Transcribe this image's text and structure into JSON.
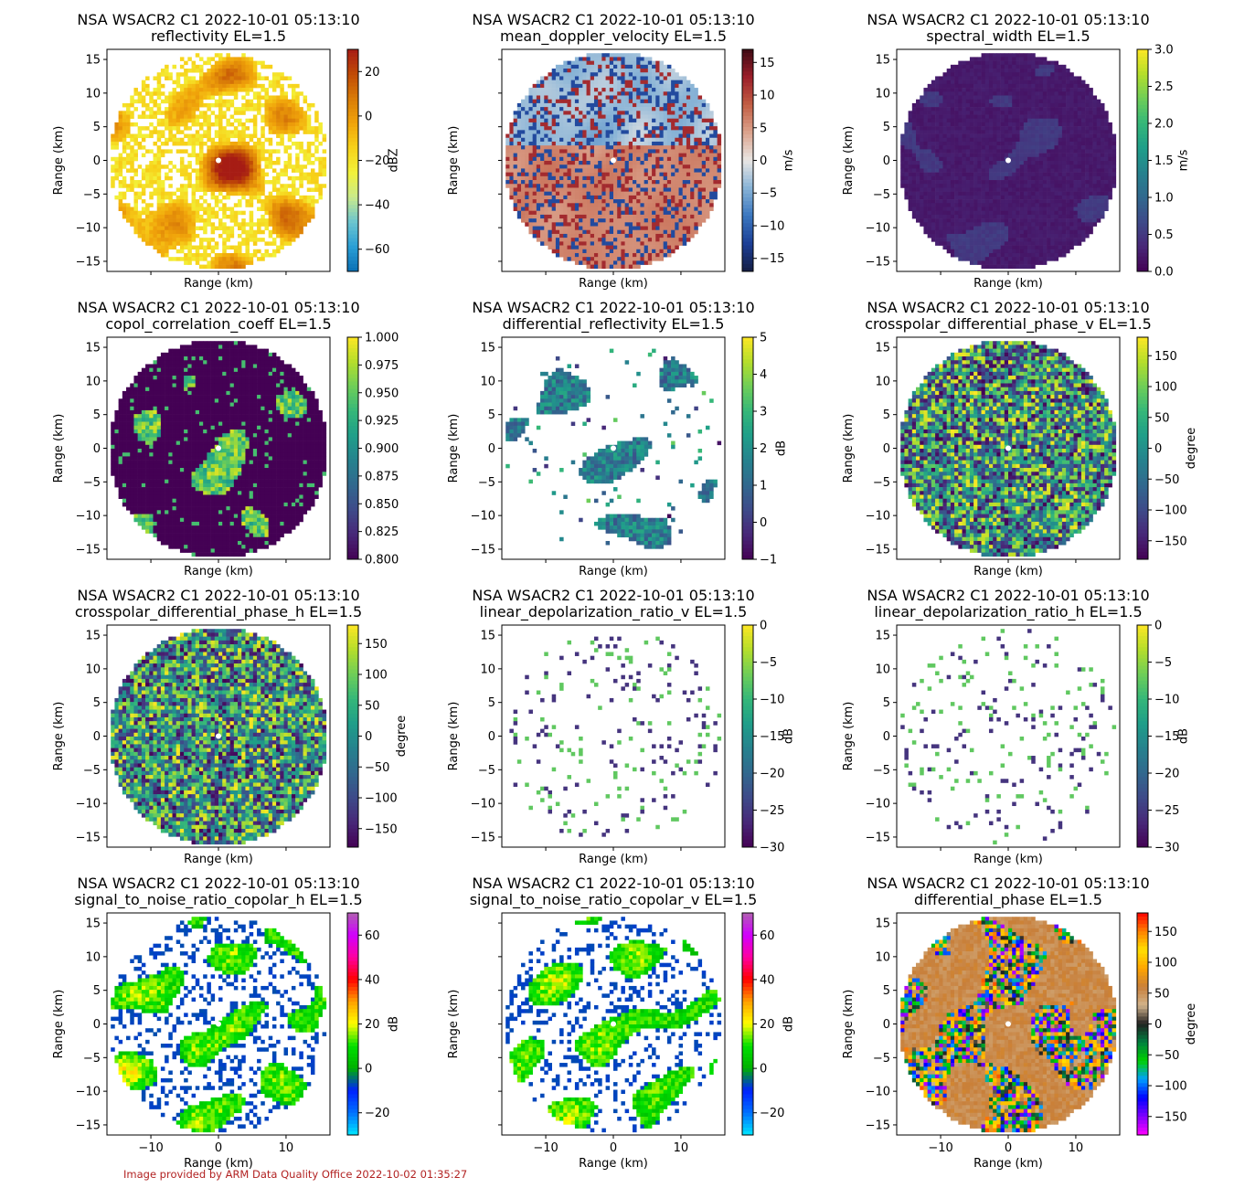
{
  "figure": {
    "credit": "Image provided by ARM Data Quality Office 2022-10-02 01:35:27",
    "colors": {
      "background": "#ffffff",
      "credit": "#b22222",
      "axes": "#000000"
    }
  },
  "chart_data": [
    {
      "type": "heatmap",
      "title": "NSA WSACR2 C1 2022-10-01 05:13:10",
      "subtitle": "reflectivity  EL=1.5",
      "xlabel": "Range (km)",
      "ylabel": "Range (km)",
      "xlim": [
        -16.5,
        16.5
      ],
      "ylim": [
        -16.5,
        16.5
      ],
      "xticks": [
        -10,
        0,
        10
      ],
      "yticks": [
        15,
        10,
        5,
        0,
        -5,
        -10,
        -15
      ],
      "show_xticklabels": false,
      "colorbar": {
        "label": "dBZ",
        "cmap": "homeyer",
        "range": [
          -70,
          30
        ],
        "ticks": [
          20,
          0,
          -20,
          -40,
          -60
        ]
      },
      "field": {
        "pattern": "cloud",
        "density": 0.8,
        "seed": 11
      }
    },
    {
      "type": "heatmap",
      "title": "NSA WSACR2 C1 2022-10-01 05:13:10",
      "subtitle": "mean_doppler_velocity  EL=1.5",
      "xlabel": "Range (km)",
      "ylabel": "Range (km)",
      "xlim": [
        -16.5,
        16.5
      ],
      "ylim": [
        -16.5,
        16.5
      ],
      "xticks": [
        -10,
        0,
        10
      ],
      "yticks": [
        15,
        10,
        5,
        0,
        -5,
        -10,
        -15
      ],
      "show_xticklabels": false,
      "show_yticklabels": false,
      "colorbar": {
        "label": "m/s",
        "cmap": "balance",
        "range": [
          -17,
          17
        ],
        "ticks": [
          15,
          10,
          5,
          0,
          -5,
          -10,
          -15
        ]
      },
      "field": {
        "pattern": "velocity",
        "density": 0.98,
        "seed": 23
      }
    },
    {
      "type": "heatmap",
      "title": "NSA WSACR2 C1 2022-10-01 05:13:10",
      "subtitle": "spectral_width  EL=1.5",
      "xlabel": "Range (km)",
      "ylabel": "Range (km)",
      "xlim": [
        -16.5,
        16.5
      ],
      "ylim": [
        -16.5,
        16.5
      ],
      "xticks": [
        -10,
        0,
        10
      ],
      "yticks": [
        15,
        10,
        5,
        0,
        -5,
        -10,
        -15
      ],
      "show_xticklabels": false,
      "colorbar": {
        "label": "m/s",
        "cmap": "viridis",
        "range": [
          0,
          3
        ],
        "ticks": [
          3.0,
          2.5,
          2.0,
          1.5,
          1.0,
          0.5,
          0.0
        ]
      },
      "field": {
        "pattern": "low",
        "density": 1.0,
        "seed": 37
      }
    },
    {
      "type": "heatmap",
      "title": "NSA WSACR2 C1 2022-10-01 05:13:10",
      "subtitle": "copol_correlation_coeff  EL=1.5",
      "xlabel": "Range (km)",
      "ylabel": "Range (km)",
      "xlim": [
        -16.5,
        16.5
      ],
      "ylim": [
        -16.5,
        16.5
      ],
      "xticks": [
        -10,
        0,
        10
      ],
      "yticks": [
        15,
        10,
        5,
        0,
        -5,
        -10,
        -15
      ],
      "show_xticklabels": false,
      "colorbar": {
        "label": "",
        "cmap": "viridis",
        "range": [
          0.8,
          1.0
        ],
        "ticks": [
          1.0,
          0.975,
          0.95,
          0.925,
          0.9,
          0.875,
          0.85,
          0.825,
          0.8
        ]
      },
      "field": {
        "pattern": "rho",
        "density": 1.0,
        "seed": 41
      }
    },
    {
      "type": "heatmap",
      "title": "NSA WSACR2 C1 2022-10-01 05:13:10",
      "subtitle": "differential_reflectivity  EL=1.5",
      "xlabel": "Range (km)",
      "ylabel": "Range (km)",
      "xlim": [
        -16.5,
        16.5
      ],
      "ylim": [
        -16.5,
        16.5
      ],
      "xticks": [
        -10,
        0,
        10
      ],
      "yticks": [
        15,
        10,
        5,
        0,
        -5,
        -10,
        -15
      ],
      "show_xticklabels": false,
      "colorbar": {
        "label": "dB",
        "cmap": "viridis",
        "range": [
          -1,
          5
        ],
        "ticks": [
          5,
          4,
          3,
          2,
          1,
          0,
          -1
        ]
      },
      "field": {
        "pattern": "sparse_cloud",
        "density": 0.35,
        "seed": 53
      }
    },
    {
      "type": "heatmap",
      "title": "NSA WSACR2 C1 2022-10-01 05:13:10",
      "subtitle": "crosspolar_differential_phase_v  EL=1.5",
      "xlabel": "Range (km)",
      "ylabel": "Range (km)",
      "xlim": [
        -16.5,
        16.5
      ],
      "ylim": [
        -16.5,
        16.5
      ],
      "xticks": [
        -10,
        0,
        10
      ],
      "yticks": [
        15,
        10,
        5,
        0,
        -5,
        -10,
        -15
      ],
      "show_xticklabels": false,
      "colorbar": {
        "label": "degree",
        "cmap": "viridis",
        "range": [
          -180,
          180
        ],
        "ticks": [
          150,
          100,
          50,
          0,
          -50,
          -100,
          -150
        ]
      },
      "field": {
        "pattern": "noise",
        "density": 1.0,
        "seed": 67
      }
    },
    {
      "type": "heatmap",
      "title": "NSA WSACR2 C1 2022-10-01 05:13:10",
      "subtitle": "crosspolar_differential_phase_h  EL=1.5",
      "xlabel": "Range (km)",
      "ylabel": "Range (km)",
      "xlim": [
        -16.5,
        16.5
      ],
      "ylim": [
        -16.5,
        16.5
      ],
      "xticks": [
        -10,
        0,
        10
      ],
      "yticks": [
        15,
        10,
        5,
        0,
        -5,
        -10,
        -15
      ],
      "show_xticklabels": false,
      "colorbar": {
        "label": "degree",
        "cmap": "viridis",
        "range": [
          -180,
          180
        ],
        "ticks": [
          150,
          100,
          50,
          0,
          -50,
          -100,
          -150
        ]
      },
      "field": {
        "pattern": "noise",
        "density": 1.0,
        "seed": 71
      }
    },
    {
      "type": "heatmap",
      "title": "NSA WSACR2 C1 2022-10-01 05:13:10",
      "subtitle": "linear_depolarization_ratio_v  EL=1.5",
      "xlabel": "Range (km)",
      "ylabel": "Range (km)",
      "xlim": [
        -16.5,
        16.5
      ],
      "ylim": [
        -16.5,
        16.5
      ],
      "xticks": [
        -10,
        0,
        10
      ],
      "yticks": [
        15,
        10,
        5,
        0,
        -5,
        -10,
        -15
      ],
      "show_xticklabels": false,
      "colorbar": {
        "label": "dB",
        "cmap": "viridis",
        "range": [
          -30,
          0
        ],
        "ticks": [
          0,
          -5,
          -10,
          -15,
          -20,
          -25,
          -30
        ]
      },
      "field": {
        "pattern": "speckle",
        "density": 0.08,
        "seed": 83
      }
    },
    {
      "type": "heatmap",
      "title": "NSA WSACR2 C1 2022-10-01 05:13:10",
      "subtitle": "linear_depolarization_ratio_h  EL=1.5",
      "xlabel": "Range (km)",
      "ylabel": "Range (km)",
      "xlim": [
        -16.5,
        16.5
      ],
      "ylim": [
        -16.5,
        16.5
      ],
      "xticks": [
        -10,
        0,
        10
      ],
      "yticks": [
        15,
        10,
        5,
        0,
        -5,
        -10,
        -15
      ],
      "show_xticklabels": false,
      "colorbar": {
        "label": "dB",
        "cmap": "viridis",
        "range": [
          -30,
          0
        ],
        "ticks": [
          0,
          -5,
          -10,
          -15,
          -20,
          -25,
          -30
        ]
      },
      "field": {
        "pattern": "speckle",
        "density": 0.09,
        "seed": 97
      }
    },
    {
      "type": "heatmap",
      "title": "NSA WSACR2 C1 2022-10-01 05:13:10",
      "subtitle": "signal_to_noise_ratio_copolar_h  EL=1.5",
      "xlabel": "Range (km)",
      "ylabel": "Range (km)",
      "xlim": [
        -16.5,
        16.5
      ],
      "ylim": [
        -16.5,
        16.5
      ],
      "xticks": [
        -10,
        0,
        10
      ],
      "yticks": [
        15,
        10,
        5,
        0,
        -5,
        -10,
        -15
      ],
      "show_xticklabels": true,
      "colorbar": {
        "label": "dB",
        "cmap": "snr",
        "range": [
          -30,
          70
        ],
        "ticks": [
          60,
          40,
          20,
          0,
          -20
        ]
      },
      "field": {
        "pattern": "snr",
        "density": 0.7,
        "seed": 101
      }
    },
    {
      "type": "heatmap",
      "title": "NSA WSACR2 C1 2022-10-01 05:13:10",
      "subtitle": "signal_to_noise_ratio_copolar_v  EL=1.5",
      "xlabel": "Range (km)",
      "ylabel": "Range (km)",
      "xlim": [
        -16.5,
        16.5
      ],
      "ylim": [
        -16.5,
        16.5
      ],
      "xticks": [
        -10,
        0,
        10
      ],
      "yticks": [
        15,
        10,
        5,
        0,
        -5,
        -10,
        -15
      ],
      "show_xticklabels": true,
      "show_yticklabels": false,
      "colorbar": {
        "label": "dB",
        "cmap": "snr",
        "range": [
          -30,
          70
        ],
        "ticks": [
          60,
          40,
          20,
          0,
          -20
        ]
      },
      "field": {
        "pattern": "snr",
        "density": 0.6,
        "seed": 113
      }
    },
    {
      "type": "heatmap",
      "title": "NSA WSACR2 C1 2022-10-01 05:13:10",
      "subtitle": "differential_phase  EL=1.5",
      "xlabel": "Range (km)",
      "ylabel": "Range (km)",
      "xlim": [
        -16.5,
        16.5
      ],
      "ylim": [
        -16.5,
        16.5
      ],
      "xticks": [
        -10,
        0,
        10
      ],
      "yticks": [
        15,
        10,
        5,
        0,
        -5,
        -10,
        -15
      ],
      "show_xticklabels": true,
      "colorbar": {
        "label": "degree",
        "cmap": "phase",
        "range": [
          -180,
          180
        ],
        "ticks": [
          150,
          100,
          50,
          0,
          -50,
          -100,
          -150
        ]
      },
      "field": {
        "pattern": "phase",
        "density": 1.0,
        "seed": 127
      }
    }
  ]
}
